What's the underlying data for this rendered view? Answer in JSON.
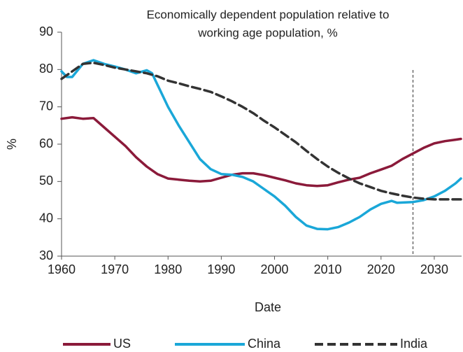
{
  "chart_data": {
    "type": "line",
    "title": [
      "Economically dependent population relative to",
      "working age population, %"
    ],
    "xlabel": "Date",
    "ylabel": "%",
    "xlim": [
      1960,
      2035
    ],
    "xticks": [
      1960,
      1970,
      1980,
      1990,
      2000,
      2010,
      2020,
      2030
    ],
    "ylim": [
      30,
      90
    ],
    "yticks": [
      30,
      40,
      50,
      60,
      70,
      80,
      90
    ],
    "vline_x": 2026,
    "legend": "bottom",
    "series": [
      {
        "name": "US",
        "color": "#8b1a3a",
        "dash": false,
        "x": [
          1960,
          1962,
          1964,
          1966,
          1968,
          1970,
          1972,
          1974,
          1976,
          1978,
          1980,
          1982,
          1984,
          1986,
          1988,
          1990,
          1992,
          1994,
          1996,
          1998,
          2000,
          2002,
          2004,
          2006,
          2008,
          2010,
          2012,
          2014,
          2016,
          2018,
          2020,
          2022,
          2024,
          2026,
          2028,
          2030,
          2032,
          2034,
          2035
        ],
        "values": [
          66.8,
          67.2,
          66.8,
          67,
          64.5,
          62,
          59.5,
          56.5,
          54,
          52,
          50.8,
          50.5,
          50.2,
          50,
          50.2,
          51,
          51.8,
          52.2,
          52.2,
          51.7,
          51,
          50.3,
          49.5,
          49,
          48.8,
          49,
          49.8,
          50.5,
          51,
          52.2,
          53.2,
          54.2,
          56,
          57.5,
          59,
          60.2,
          60.8,
          61.2,
          61.4
        ]
      },
      {
        "name": "China",
        "color": "#1aa7d8",
        "dash": false,
        "x": [
          1960,
          1961,
          1962,
          1964,
          1966,
          1968,
          1970,
          1972,
          1974,
          1976,
          1977,
          1978,
          1980,
          1982,
          1984,
          1986,
          1988,
          1990,
          1992,
          1994,
          1996,
          1998,
          2000,
          2002,
          2004,
          2006,
          2008,
          2010,
          2012,
          2014,
          2016,
          2018,
          2020,
          2022,
          2023,
          2026,
          2028,
          2030,
          2032,
          2034,
          2035
        ],
        "values": [
          79.5,
          78,
          78,
          81.5,
          82.5,
          81.5,
          80.8,
          80,
          79,
          79.8,
          79,
          76,
          70,
          65,
          60.5,
          56,
          53.3,
          52,
          51.8,
          51.2,
          50,
          48,
          46,
          43.5,
          40.5,
          38.2,
          37.3,
          37.2,
          37.8,
          39,
          40.5,
          42.5,
          44,
          44.8,
          44.3,
          44.5,
          45,
          46,
          47.5,
          49.5,
          50.8
        ]
      },
      {
        "name": "India",
        "color": "#333333",
        "dash": true,
        "x": [
          1960,
          1962,
          1964,
          1966,
          1968,
          1970,
          1972,
          1974,
          1976,
          1978,
          1980,
          1982,
          1984,
          1986,
          1988,
          1990,
          1992,
          1994,
          1996,
          1998,
          2000,
          2002,
          2004,
          2006,
          2008,
          2010,
          2012,
          2014,
          2016,
          2018,
          2020,
          2022,
          2024,
          2026,
          2028,
          2030,
          2032,
          2035
        ],
        "values": [
          77.5,
          79.5,
          81.5,
          81.8,
          81.2,
          80.5,
          80,
          79.5,
          79,
          78.2,
          77,
          76.3,
          75.5,
          74.8,
          74,
          72.8,
          71.5,
          70,
          68.3,
          66.3,
          64.5,
          62.5,
          60.5,
          58.2,
          56,
          54,
          52.3,
          50.8,
          49.5,
          48.5,
          47.5,
          46.8,
          46.2,
          45.7,
          45.4,
          45.2,
          45.2,
          45.2
        ]
      }
    ]
  }
}
